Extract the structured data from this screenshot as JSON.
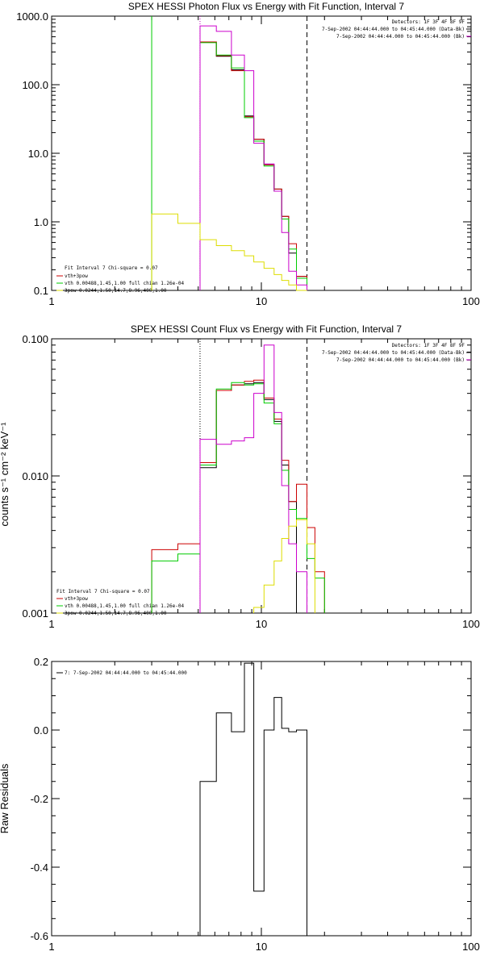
{
  "colors": {
    "data": "#000000",
    "model": "#cc0000",
    "vth": "#00cc00",
    "pow": "#dddd00",
    "bk": "#cc00cc"
  },
  "chart_data": [
    {
      "type": "line",
      "title": "SPEX HESSI Photon Flux vs Energy with Fit Function, Interval 7",
      "xscale": "log",
      "yscale": "log",
      "xlim": [
        1,
        100
      ],
      "ylim": [
        0.1,
        1000
      ],
      "xticks": [
        "1",
        "10",
        "100"
      ],
      "yticks": [
        "0.1",
        "1.0",
        "10.0",
        "100.0",
        "1000.0"
      ],
      "ytick_values": [
        0.1,
        1,
        10,
        100,
        1000
      ],
      "header_lines": [
        "Detectors: 1F 3F 4F 8F 9F",
        "7-Sep-2002 04:44:44.000 to 04:45:44.000 (Data-Bk)",
        "7-Sep-2002 04:44:44.000 to 04:45:44.000 (Bk)"
      ],
      "legend_lines": [
        "Fit Interval 7   Chi-square = 0.07",
        "vth+3pow",
        "vth 0.00488,1.45,1.00  full chian 1.26e-04",
        "3pow 0.0244,1.50,14.7,8.96,400,1.00"
      ],
      "vlines": [
        {
          "x": 3.0,
          "color": "vth",
          "dash": "solid"
        },
        {
          "x": 5.1,
          "color": "vth",
          "dash": "dotted"
        },
        {
          "x": 5.1,
          "color": "bk",
          "dash": "dotted"
        },
        {
          "x": 16.5,
          "color": "data",
          "dash": "dashed"
        }
      ],
      "edges": [
        5.1,
        6.1,
        7.2,
        8.3,
        9.2,
        10.3,
        11.5,
        12.5,
        13.5,
        14.7,
        16.5
      ],
      "series": [
        {
          "color": "data",
          "values": [
            420,
            260,
            165,
            35,
            16,
            6.8,
            3.0,
            1.2,
            0.35,
            0.16
          ]
        },
        {
          "color": "model",
          "values": [
            420,
            265,
            160,
            34,
            16,
            6.8,
            3.0,
            1.2,
            0.48,
            0.16
          ]
        },
        {
          "color": "vth",
          "values": [
            410,
            270,
            175,
            33,
            15,
            6.5,
            2.8,
            1.1,
            0.4,
            0.15
          ]
        },
        {
          "color": "bk",
          "values": [
            720,
            600,
            270,
            160,
            14,
            7.0,
            2.8,
            0.7,
            0.19,
            0.12
          ]
        }
      ],
      "pow_series": {
        "color": "pow",
        "edges": [
          3.0,
          4.0,
          5.1,
          6.1,
          7.2,
          8.3,
          9.2,
          10.3,
          11.5,
          12.5,
          13.5,
          14.7,
          16.5
        ],
        "values": [
          1.3,
          0.95,
          0.55,
          0.45,
          0.38,
          0.32,
          0.26,
          0.21,
          0.17,
          0.14,
          0.12,
          0.1
        ]
      }
    },
    {
      "type": "line",
      "title": "SPEX HESSI Count Flux vs Energy with Fit Function, Interval 7",
      "ylabel": "counts s⁻¹ cm⁻² keV⁻¹",
      "xscale": "log",
      "yscale": "log",
      "xlim": [
        1,
        100
      ],
      "ylim": [
        0.001,
        0.1
      ],
      "xticks": [
        "1",
        "10",
        "100"
      ],
      "yticks": [
        "0.001",
        "0.010",
        "0.100"
      ],
      "ytick_values": [
        0.001,
        0.01,
        0.1
      ],
      "header_lines": [
        "Detectors: 1F 3F 4F 8F 9F",
        "7-Sep-2002 04:44:44.000 to 04:45:44.000 (Data-Bk)",
        "7-Sep-2002 04:44:44.000 to 04:45:44.000 (Bk)"
      ],
      "legend_lines": [
        "Fit Interval 7   Chi-square = 0.07",
        "vth+3pow",
        "vth 0.00488,1.45,1.00  full chian 1.26e-04",
        "3pow 0.0244,1.50,14.7,8.96,400,1.00"
      ],
      "vlines": [
        {
          "x": 5.1,
          "color": "data",
          "dash": "dotted"
        },
        {
          "x": 16.5,
          "color": "data",
          "dash": "dashed"
        }
      ],
      "edges": [
        3.0,
        4.0,
        5.1,
        6.1,
        7.2,
        8.3,
        9.2,
        10.3,
        11.5,
        12.5,
        13.5,
        14.7,
        16.5,
        18.0,
        20.0
      ],
      "series": [
        {
          "color": "data",
          "values": [
            null,
            null,
            0.0115,
            0.042,
            0.046,
            0.047,
            0.048,
            0.036,
            0.025,
            0.012,
            0.0065,
            null,
            null,
            null
          ]
        },
        {
          "color": "model",
          "values": [
            0.0029,
            0.0032,
            0.0125,
            0.042,
            0.046,
            0.049,
            0.05,
            0.037,
            0.026,
            0.013,
            0.0065,
            0.0087,
            0.0042,
            0.002
          ]
        },
        {
          "color": "vth",
          "values": [
            0.0024,
            0.0027,
            0.012,
            0.043,
            0.048,
            0.046,
            0.047,
            0.034,
            0.024,
            0.011,
            0.0057,
            0.0049,
            0.0025,
            0.0018
          ]
        },
        {
          "color": "bk",
          "values": [
            null,
            null,
            0.0185,
            0.017,
            0.018,
            0.019,
            0.04,
            0.09,
            0.029,
            0.0085,
            0.0032,
            0.002,
            null,
            null
          ]
        },
        {
          "color": "pow",
          "values": [
            null,
            null,
            null,
            null,
            null,
            null,
            0.0011,
            0.0016,
            0.0024,
            0.0035,
            0.0043,
            0.0048,
            0.0032,
            null
          ]
        }
      ]
    },
    {
      "type": "line",
      "ylabel": "Raw Residuals",
      "xscale": "log",
      "xlim": [
        1,
        100
      ],
      "ylim": [
        -0.6,
        0.2
      ],
      "xticks": [
        "1",
        "10",
        "100"
      ],
      "yticks": [
        "-0.6",
        "-0.4",
        "-0.2",
        "0.0",
        "0.2"
      ],
      "ytick_values": [
        -0.6,
        -0.4,
        -0.2,
        0.0,
        0.2
      ],
      "legend_lines": [
        "7:  7-Sep-2002 04:44:44.000 to 04:45:44.000"
      ],
      "edges": [
        5.1,
        6.1,
        7.2,
        8.3,
        9.2,
        10.3,
        11.5,
        12.5,
        13.5,
        14.7,
        16.5
      ],
      "series": [
        {
          "color": "data",
          "values": [
            -0.15,
            0.05,
            -0.005,
            0.195,
            -0.47,
            0.0,
            0.095,
            0.005,
            -0.005,
            0.0
          ]
        }
      ]
    }
  ]
}
